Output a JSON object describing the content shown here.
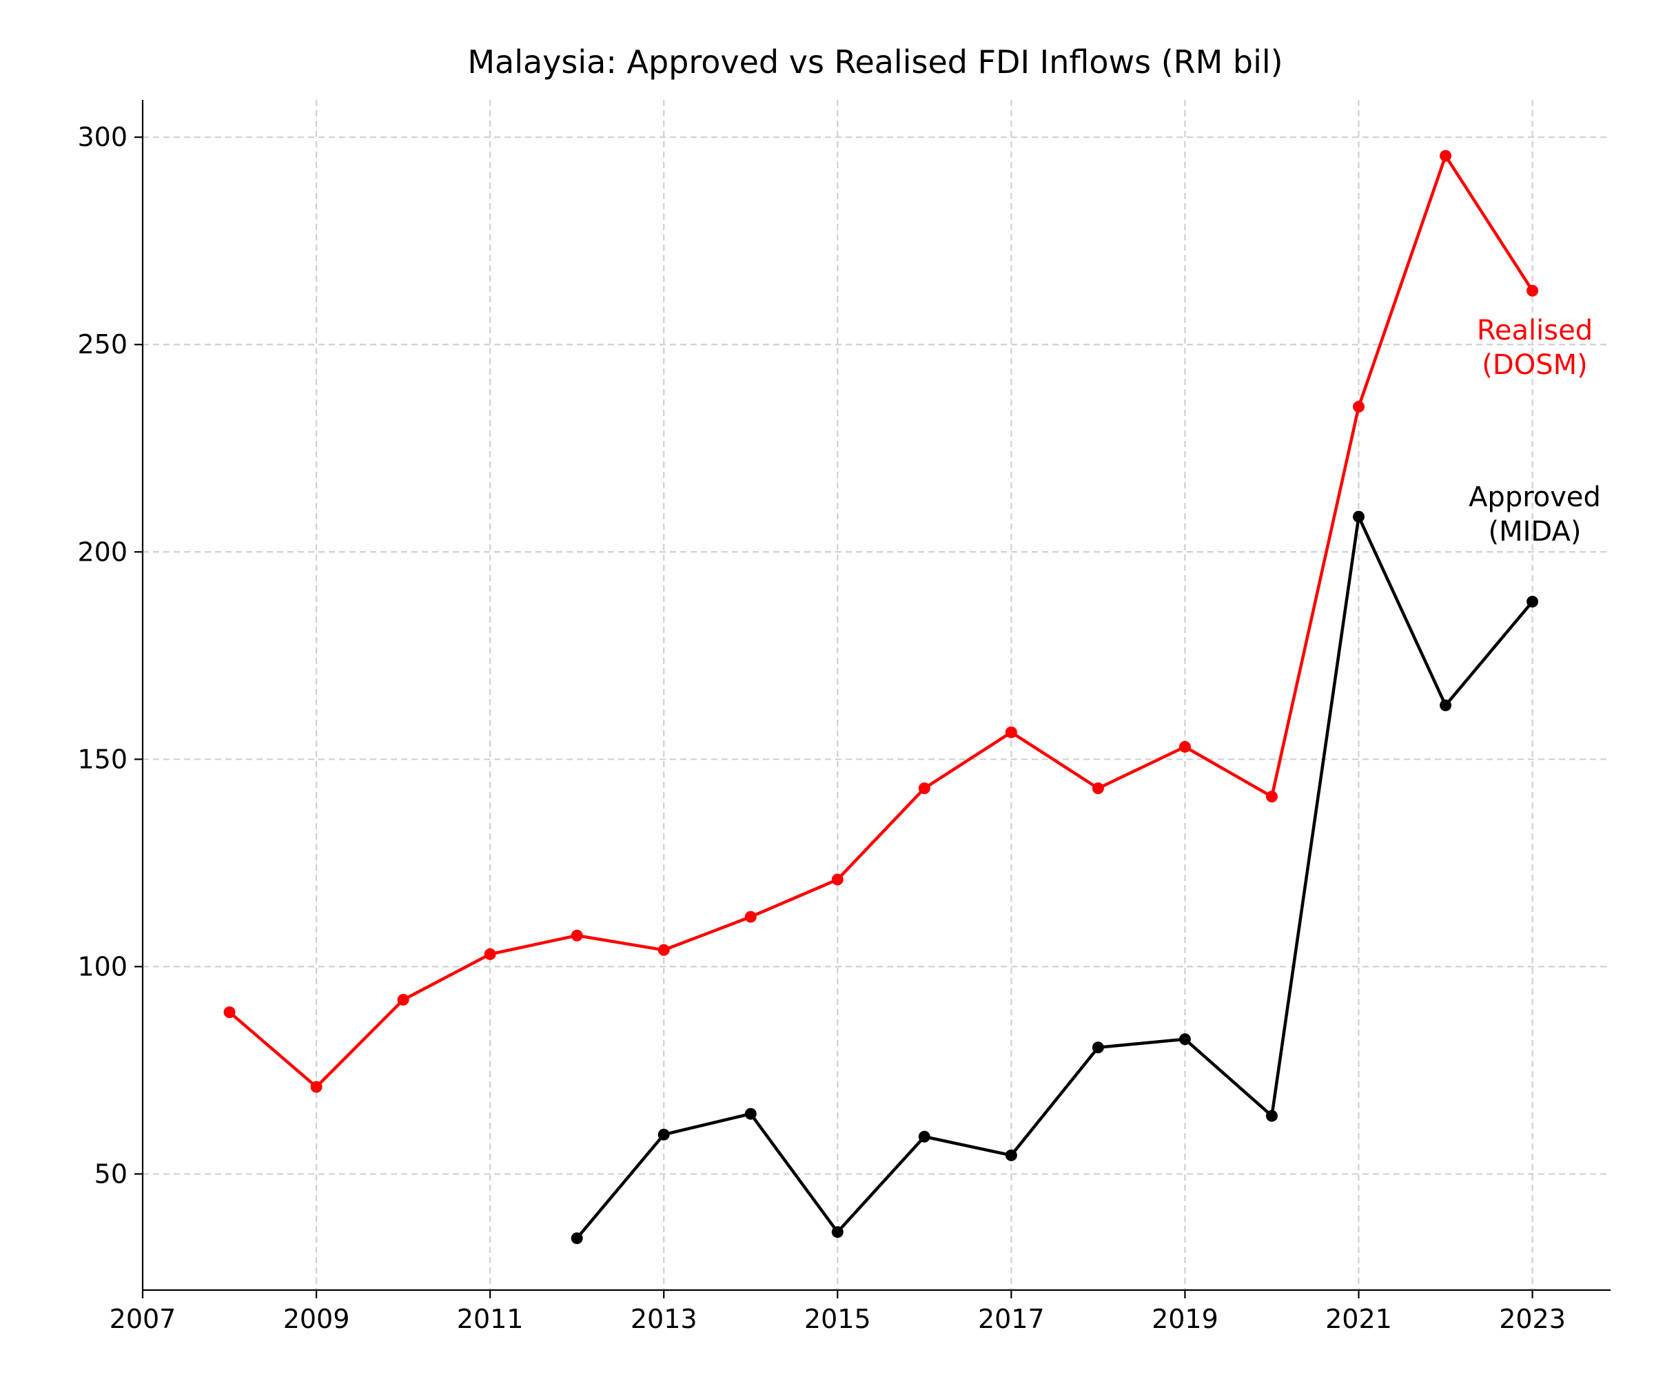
{
  "chart_data": {
    "type": "line",
    "title": "Malaysia: Approved vs Realised FDI Inflows (RM bil)",
    "xlabel": "",
    "ylabel": "",
    "xlim": [
      2007,
      2023.9
    ],
    "ylim": [
      22,
      309
    ],
    "x_ticks": [
      2007,
      2009,
      2011,
      2013,
      2015,
      2017,
      2019,
      2021,
      2023
    ],
    "y_ticks": [
      50,
      100,
      150,
      200,
      250,
      300
    ],
    "grid": true,
    "series": [
      {
        "name": "Realised (DOSM)",
        "color": "#ff0000",
        "label_lines": [
          "Realised",
          "(DOSM)"
        ],
        "points": [
          {
            "x": 2008,
            "y": 89
          },
          {
            "x": 2009,
            "y": 71
          },
          {
            "x": 2010,
            "y": 92
          },
          {
            "x": 2011,
            "y": 103
          },
          {
            "x": 2012,
            "y": 107.5
          },
          {
            "x": 2013,
            "y": 104
          },
          {
            "x": 2014,
            "y": 112
          },
          {
            "x": 2015,
            "y": 121
          },
          {
            "x": 2016,
            "y": 143
          },
          {
            "x": 2017,
            "y": 156.5
          },
          {
            "x": 2018,
            "y": 143
          },
          {
            "x": 2019,
            "y": 153
          },
          {
            "x": 2020,
            "y": 141
          },
          {
            "x": 2021,
            "y": 235
          },
          {
            "x": 2022,
            "y": 295.5
          },
          {
            "x": 2023,
            "y": 263
          }
        ]
      },
      {
        "name": "Approved (MIDA)",
        "color": "#000000",
        "label_lines": [
          "Approved",
          "(MIDA)"
        ],
        "points": [
          {
            "x": 2012,
            "y": 34.5
          },
          {
            "x": 2013,
            "y": 59.5
          },
          {
            "x": 2014,
            "y": 64.5
          },
          {
            "x": 2015,
            "y": 36
          },
          {
            "x": 2016,
            "y": 59
          },
          {
            "x": 2017,
            "y": 54.5
          },
          {
            "x": 2018,
            "y": 80.5
          },
          {
            "x": 2019,
            "y": 82.5
          },
          {
            "x": 2020,
            "y": 64
          },
          {
            "x": 2021,
            "y": 208.5
          },
          {
            "x": 2022,
            "y": 163
          },
          {
            "x": 2023,
            "y": 188
          }
        ]
      }
    ]
  }
}
